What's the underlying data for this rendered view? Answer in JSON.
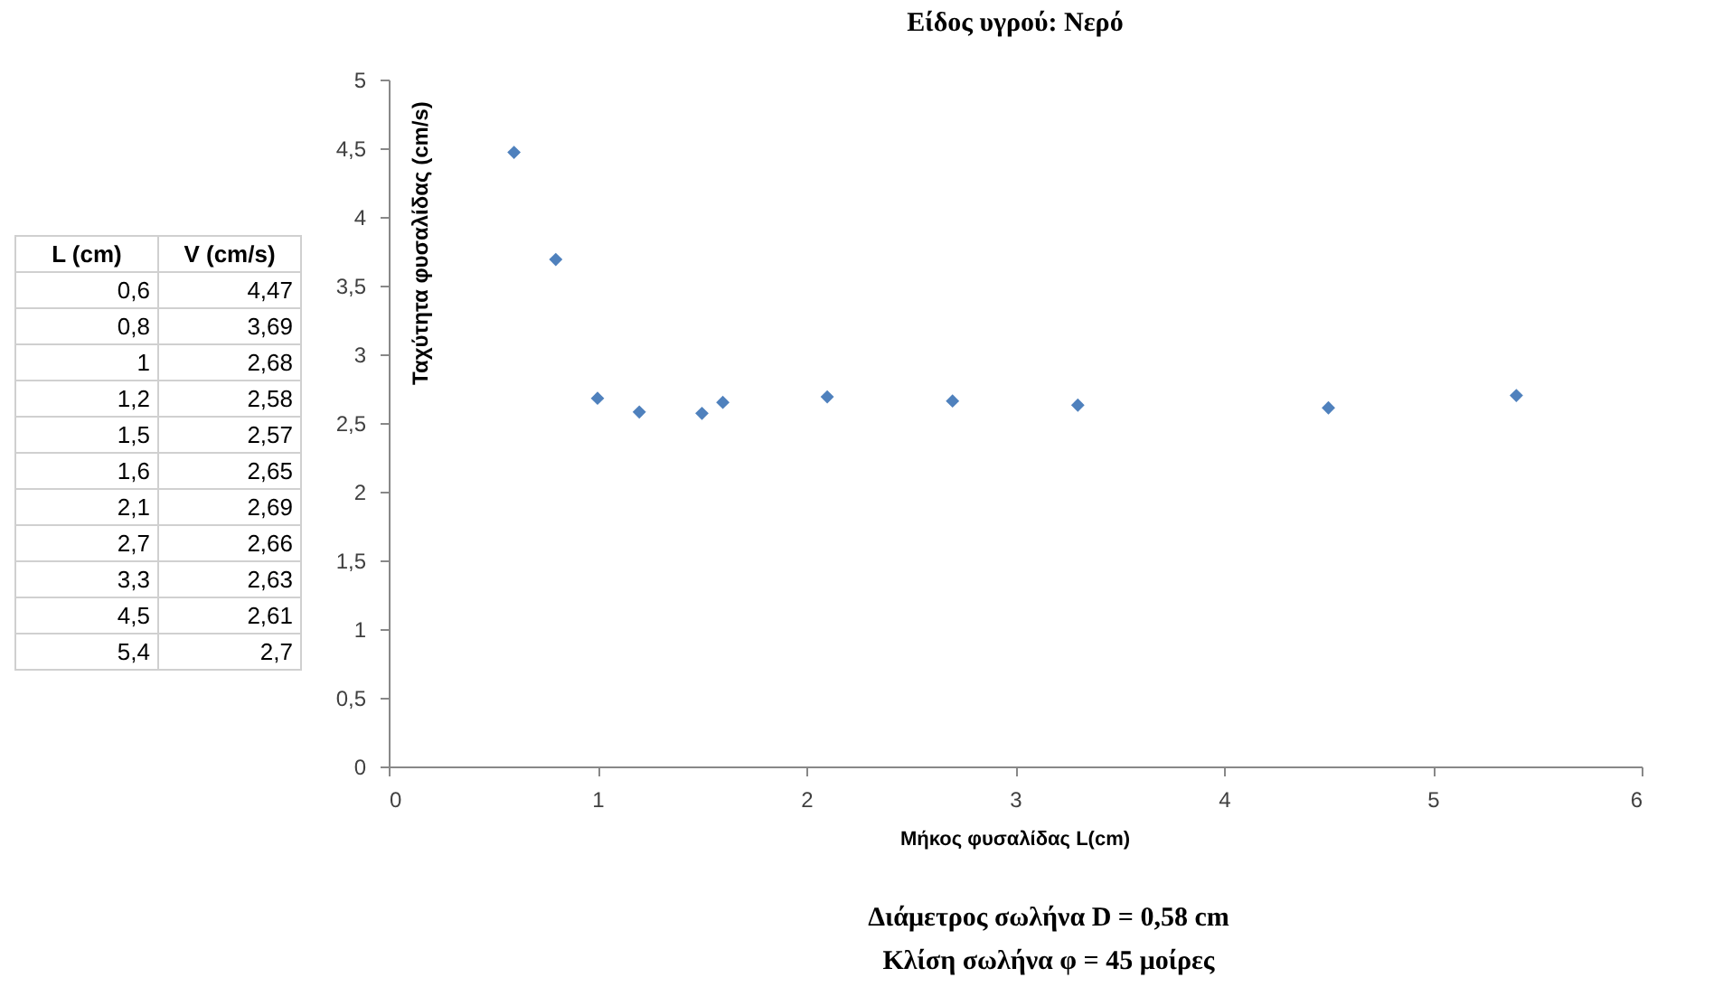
{
  "chart_data": {
    "type": "scatter",
    "title": "Είδος υγρού: Νερό",
    "xlabel": "Μήκος φυσαλίδας L(cm)",
    "ylabel": "Ταχύτητα φυσαλίδας (cm/s)",
    "x": [
      0.6,
      0.8,
      1,
      1.2,
      1.5,
      1.6,
      2.1,
      2.7,
      3.3,
      4.5,
      5.4
    ],
    "series": [
      {
        "color": "#4f81bd",
        "values": [
          4.47,
          3.69,
          2.68,
          2.58,
          2.57,
          2.65,
          2.69,
          2.66,
          2.63,
          2.61,
          2.7
        ]
      }
    ],
    "marker": "diamond",
    "xlim": [
      0,
      6
    ],
    "xticks": [
      0,
      1,
      2,
      3,
      4,
      5,
      6
    ],
    "ylim": [
      0,
      5
    ],
    "yticks": [
      0,
      {
        "value": 0.5,
        "label": "0,5"
      },
      1,
      {
        "value": 1.5,
        "label": "1,5"
      },
      2,
      {
        "value": 2.5,
        "label": "2,5"
      },
      3,
      {
        "value": 3.5,
        "label": "3,5"
      },
      4,
      {
        "value": 4.5,
        "label": "4,5"
      },
      5
    ],
    "annotations": [
      "L (cm)",
      "V (cm/s)",
      "0,6",
      "4,47",
      "0,8",
      "3,69",
      "1",
      "2,68",
      "1,2",
      "2,58",
      "1,5",
      "2,57",
      "1,6",
      "2,65",
      "2,1",
      "2,69",
      "2,7",
      "2,66",
      "3,3",
      "2,63",
      "4,5",
      "2,61",
      "5,4",
      "2,7",
      "Διάμετρος σωλήνα  D = 0,58 cm",
      "Κλίση σωλήνα  φ = 45 μοίρες"
    ]
  }
}
